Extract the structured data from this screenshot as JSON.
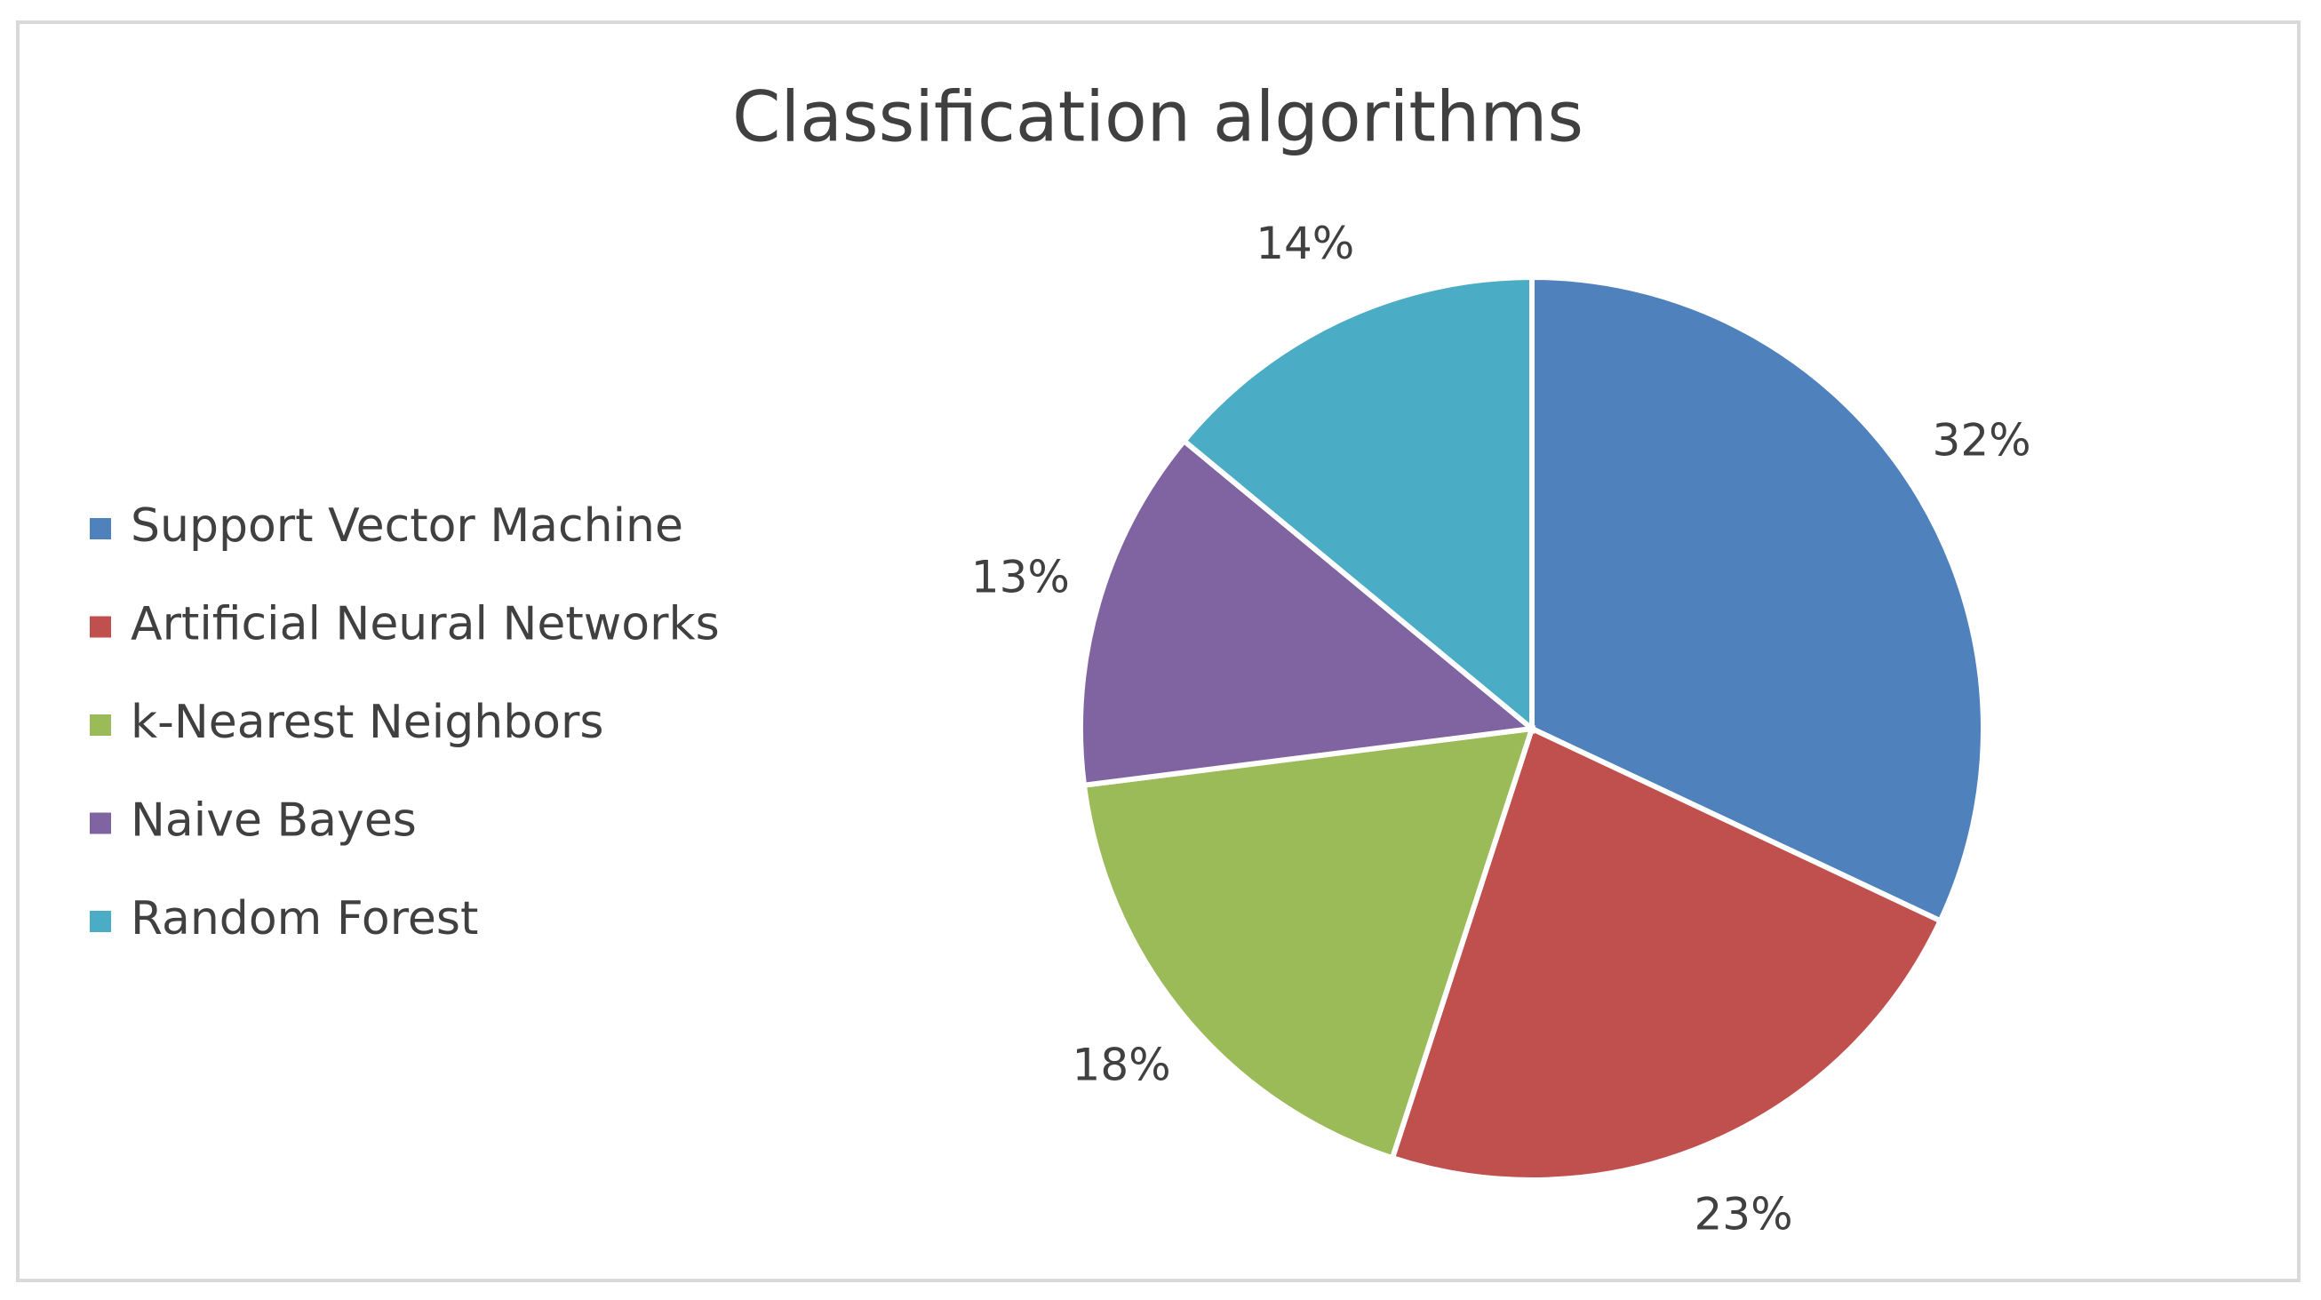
{
  "chart_data": {
    "type": "pie",
    "title": "Classification algorithms",
    "categories": [
      "Support Vector Machine",
      "Artificial Neural Networks",
      "k-Nearest Neighbors",
      "Naive Bayes",
      "Random Forest"
    ],
    "values": [
      32,
      23,
      18,
      13,
      14
    ],
    "value_labels": [
      "32%",
      "23%",
      "18%",
      "13%",
      "14%"
    ],
    "colors": [
      "#4f81bd",
      "#c0504d",
      "#9bbb59",
      "#8064a2",
      "#4bacc6"
    ],
    "legend": "left"
  }
}
